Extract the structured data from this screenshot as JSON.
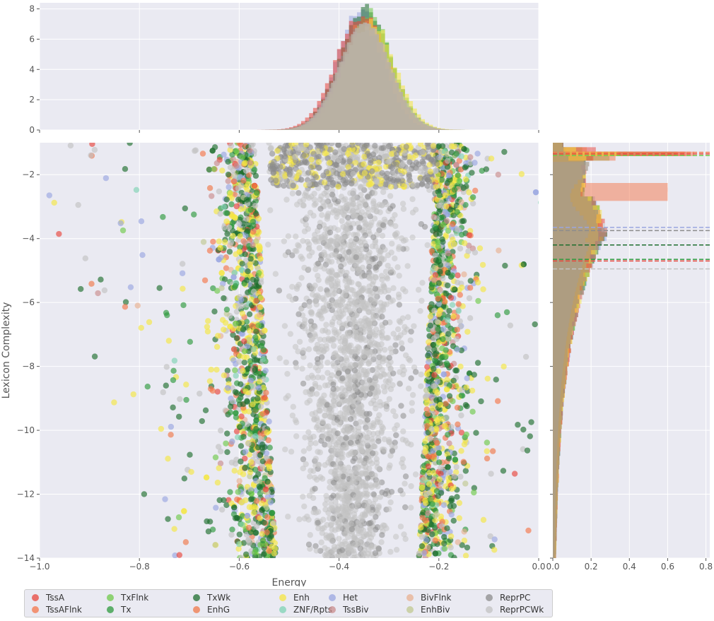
{
  "chart_data": {
    "type": "scatter",
    "xlabel": "Energy",
    "ylabel": "Lexicon Complexity",
    "xlim": [
      -1.0,
      0.0
    ],
    "ylim": [
      -14,
      -1.0
    ],
    "x_ticks": [
      "−1.0",
      "−0.8",
      "−0.6",
      "−0.4",
      "−0.2",
      "0.0"
    ],
    "x_tick_values": [
      -1.0,
      -0.8,
      -0.6,
      -0.4,
      -0.2,
      0.0
    ],
    "y_ticks": [
      "−2",
      "−4",
      "−6",
      "−8",
      "−10",
      "−12",
      "−14"
    ],
    "y_tick_values": [
      -2,
      -4,
      -6,
      -8,
      -10,
      -12,
      -14
    ],
    "grid": true,
    "legend_placement": "bottom",
    "series": [
      {
        "name": "TssA",
        "color": "#e8453c"
      },
      {
        "name": "TssAFlnk",
        "color": "#f4764a"
      },
      {
        "name": "TxFlnk",
        "color": "#6fc94a"
      },
      {
        "name": "Tx",
        "color": "#2e9a3e"
      },
      {
        "name": "TxWk",
        "color": "#1e6e2e"
      },
      {
        "name": "EnhG",
        "color": "#f07848"
      },
      {
        "name": "Enh",
        "color": "#f5e642"
      },
      {
        "name": "ZNF/Rpts",
        "color": "#7fd3b4"
      },
      {
        "name": "Het",
        "color": "#9aa6e0"
      },
      {
        "name": "TssBiv",
        "color": "#c98c8c"
      },
      {
        "name": "BivFlnk",
        "color": "#e8b090"
      },
      {
        "name": "EnhBiv",
        "color": "#c0c890"
      },
      {
        "name": "ReprPC",
        "color": "#8c8c8c"
      },
      {
        "name": "ReprPCWk",
        "color": "#c2c2c2"
      }
    ],
    "top_hist": {
      "ylim": [
        0,
        8.4
      ],
      "y_ticks": [
        "0",
        "2",
        "4",
        "6",
        "8"
      ],
      "y_tick_values": [
        0,
        2,
        4,
        6,
        8
      ],
      "peak_x": -0.35,
      "peak_y": 8.2
    },
    "right_hist": {
      "xlim": [
        0,
        0.82
      ],
      "x_ticks": [
        "0.0",
        "0.2",
        "0.4",
        "0.6",
        "0.8"
      ],
      "x_tick_values": [
        0.0,
        0.2,
        0.4,
        0.6,
        0.8
      ],
      "mean_lines": [
        {
          "series": "TssA",
          "y": -1.35,
          "color": "#e8453c"
        },
        {
          "series": "TssAFlnk",
          "y": -1.3,
          "color": "#f4764a"
        },
        {
          "series": "TxFlnk",
          "y": -1.4,
          "color": "#6fc94a"
        },
        {
          "series": "Het",
          "y": -3.65,
          "color": "#9aa6e0"
        },
        {
          "series": "ReprPC",
          "y": -3.75,
          "color": "#8c8c8c"
        },
        {
          "series": "TxWk",
          "y": -4.2,
          "color": "#1e6e2e"
        },
        {
          "series": "Tx",
          "y": -4.65,
          "color": "#2e9a3e"
        },
        {
          "series": "TssA",
          "y": -4.7,
          "color": "#e8453c"
        },
        {
          "series": "ReprPCWk",
          "y": -4.95,
          "color": "#c2c2c2"
        }
      ]
    }
  }
}
